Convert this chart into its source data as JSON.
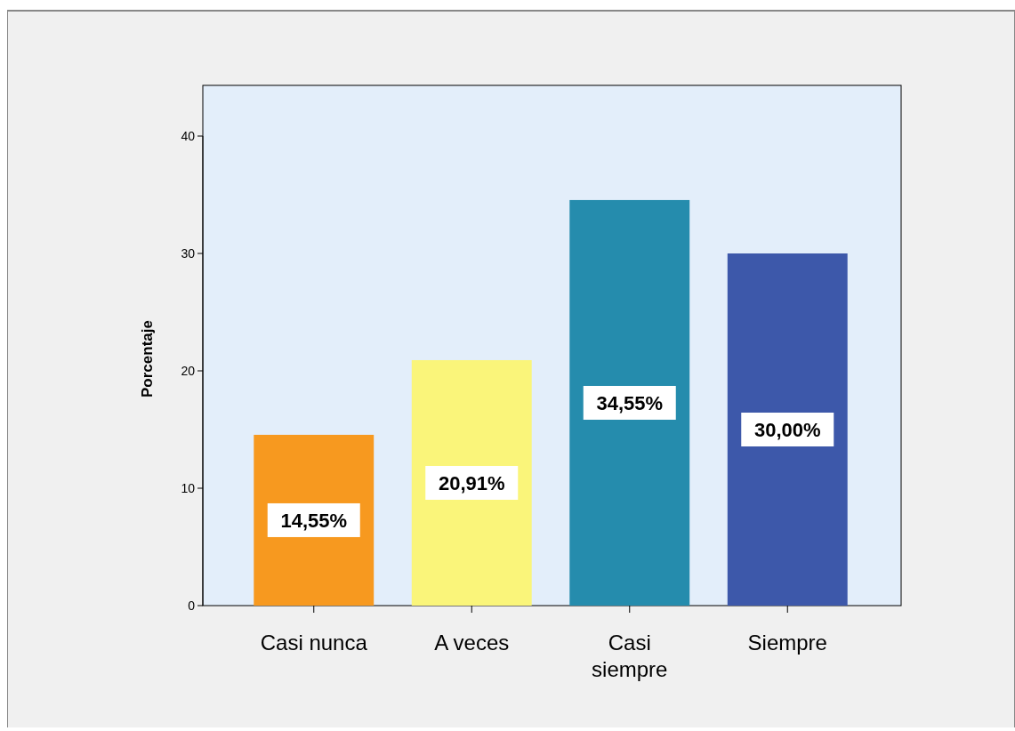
{
  "chart_data": {
    "type": "bar",
    "ylabel": "Porcentaje",
    "categories": [
      "Casi nunca",
      "A veces",
      "Casi siempre",
      "Siempre"
    ],
    "values": [
      14.55,
      20.91,
      34.55,
      30.0
    ],
    "colors": [
      "#f7991f",
      "#faf57a",
      "#258cad",
      "#3d58aa"
    ],
    "value_labels": [
      "14,55%",
      "20,91%",
      "34,55%",
      "30,00%"
    ],
    "ylim": [
      0,
      40
    ],
    "yticks": [
      0,
      10,
      20,
      30,
      40
    ]
  }
}
